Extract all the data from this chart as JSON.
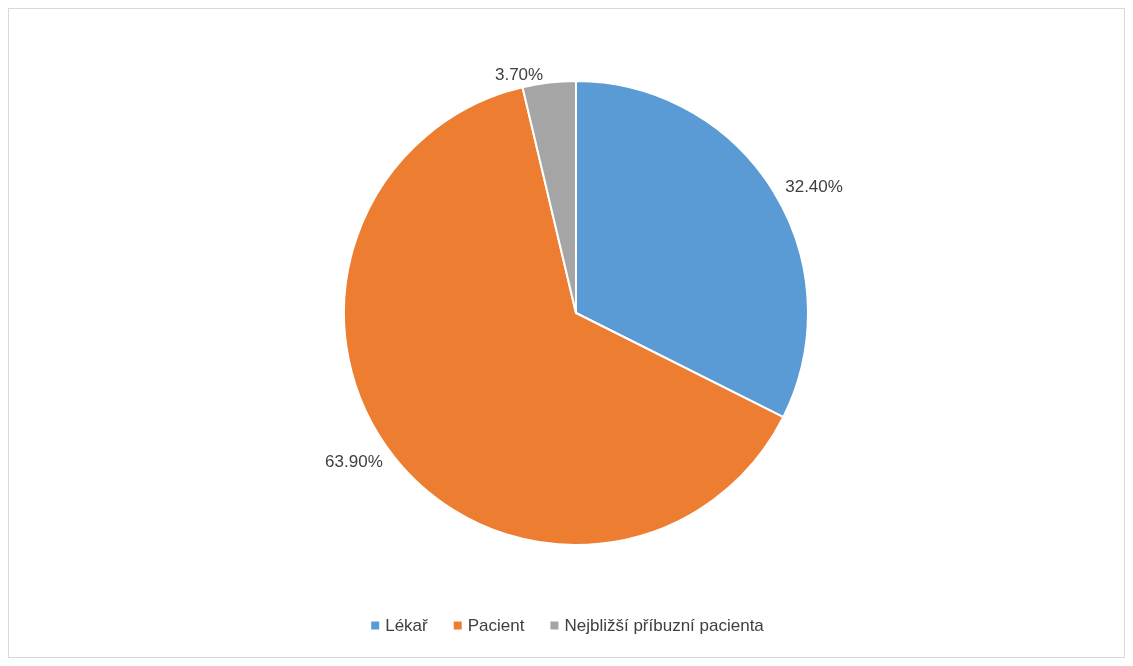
{
  "chart_data": {
    "type": "pie",
    "categories": [
      "Lékař",
      "Pacient",
      "Nejbližší příbuzní pacienta"
    ],
    "values": [
      32.4,
      63.9,
      3.7
    ],
    "colors": [
      "#5b9bd5",
      "#ed7d31",
      "#a5a5a5"
    ],
    "value_labels": [
      "32.40%",
      "63.90%",
      "3.70%"
    ],
    "legend": "bottom"
  }
}
